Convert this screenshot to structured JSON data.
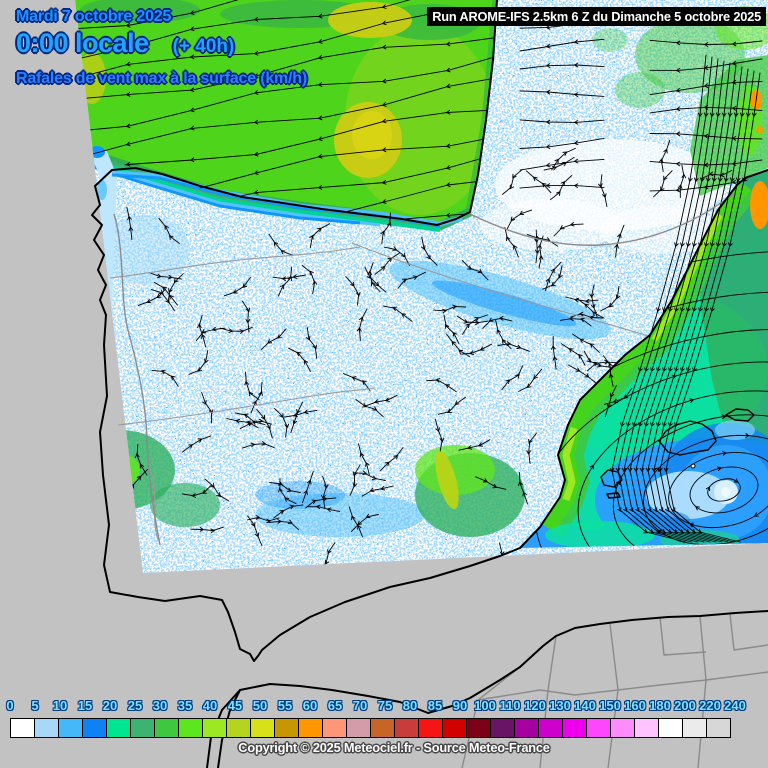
{
  "header": {
    "date": "Mardi 7 octobre 2025",
    "time": "0:00 locale",
    "forecast_offset": "(+ 40h)",
    "variable": "Rafales de vent max à la surface (km/h)"
  },
  "run_banner": "Run AROME-IFS 2.5km 6 Z du Dimanche 5 octobre 2025",
  "footer": "Copyright © 2025 Meteociel.fr - Source Meteo-France",
  "color_scale": {
    "unit": "km/h",
    "ticks": [
      "0",
      "5",
      "10",
      "15",
      "20",
      "25",
      "30",
      "35",
      "40",
      "45",
      "50",
      "55",
      "60",
      "65",
      "70",
      "75",
      "80",
      "85",
      "90",
      "100",
      "110",
      "120",
      "130",
      "140",
      "150",
      "160",
      "180",
      "200",
      "220",
      "240"
    ],
    "colors": [
      "#ffffff",
      "#a8d8f8",
      "#44b8f8",
      "#0e82f5",
      "#00e690",
      "#3cb371",
      "#3fc83f",
      "#5ce61e",
      "#9ce822",
      "#b4d41e",
      "#d7e018",
      "#c89600",
      "#ff9600",
      "#ff9678",
      "#d49ca8",
      "#c86428",
      "#c83c3c",
      "#f51515",
      "#d20000",
      "#7d0019",
      "#691464",
      "#a500a0",
      "#cd00cd",
      "#ee00ee",
      "#ff46ff",
      "#ff8cff",
      "#ffc3ff",
      "#ffffff",
      "#ebebeb",
      "#d7d7d7"
    ]
  },
  "map_colors": {
    "outside_domain": "#c2c2c2",
    "calm_land": "#ffffff",
    "speckle_light": "#aadcff",
    "speckle_mid": "#55c2ff",
    "speckle_strong": "#0e96ff",
    "biscay_green": "#4fd41c",
    "olive_patch": "#c9cc14",
    "med_blue": "#2a9fff",
    "med_spring_green": "#0ce0a0",
    "coastal_jet_green": "#44d41e",
    "jet_core_yellow_green": "#9ce822",
    "orange_spot": "#ff9600",
    "streamline": "#000000",
    "coastline": "#000000",
    "border_grey": "#8a8a8a"
  }
}
